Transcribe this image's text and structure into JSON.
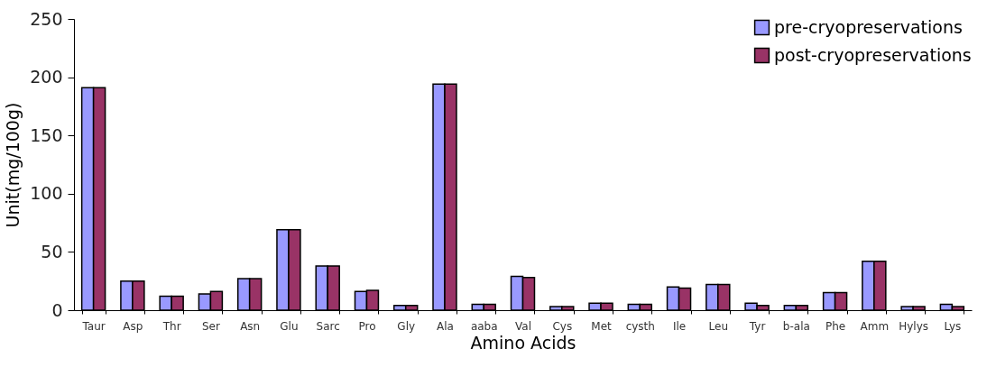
{
  "chart_data": {
    "type": "bar",
    "xlabel": "Amino Acids",
    "ylabel": "Unit(mg/100g)",
    "categories": [
      "Taur",
      "Asp",
      "Thr",
      "Ser",
      "Asn",
      "Glu",
      "Sarc",
      "Pro",
      "Gly",
      "Ala",
      "aaba",
      "Val",
      "Cys",
      "Met",
      "cysth",
      "Ile",
      "Leu",
      "Tyr",
      "b-ala",
      "Phe",
      "Amm",
      "Hylys",
      "Lys"
    ],
    "series": [
      {
        "name": "pre-cryopreservations",
        "color": "#9999ff",
        "values": [
          191,
          25,
          12,
          14,
          27,
          69,
          38,
          16,
          4,
          194,
          5,
          29,
          3,
          6,
          5,
          20,
          22,
          6,
          4,
          15,
          42,
          3,
          5
        ]
      },
      {
        "name": "post-cryopreservations",
        "color": "#993366",
        "values": [
          191,
          25,
          12,
          16,
          27,
          69,
          38,
          17,
          4,
          194,
          5,
          28,
          3,
          6,
          5,
          19,
          22,
          4,
          4,
          15,
          42,
          3,
          3
        ]
      }
    ],
    "ylim": [
      0,
      250
    ],
    "yticks": [
      0,
      50,
      100,
      150,
      200,
      250
    ],
    "grid": false,
    "legend": "top right"
  }
}
